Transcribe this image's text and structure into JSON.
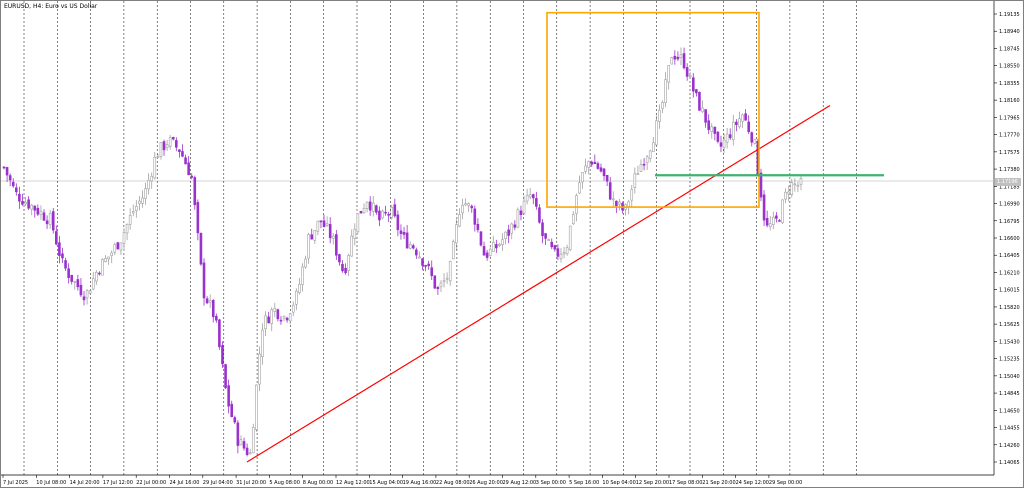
{
  "window": {
    "title": "EURUSD, H4:  Euro vs US Dollar",
    "current_price_label": "1.17196"
  },
  "price_axis": {
    "labels": [
      "1.19135",
      "1.18940",
      "1.18745",
      "1.18550",
      "1.18355",
      "1.18160",
      "1.17965",
      "1.17770",
      "1.17575",
      "1.17380",
      "1.17185",
      "1.16990",
      "1.16795",
      "1.16600",
      "1.16405",
      "1.16210",
      "1.16015",
      "1.15820",
      "1.15625",
      "1.15430",
      "1.15235",
      "1.15040",
      "1.14845",
      "1.14650",
      "1.14455",
      "1.14260",
      "1.14065"
    ]
  },
  "time_axis": {
    "labels": [
      "7 Jul 2025",
      "10 Jul 08:00",
      "14 Jul 20:00",
      "17 Jul 12:00",
      "22 Jul 00:00",
      "24 Jul 16:00",
      "29 Jul 04:00",
      "31 Jul 20:00",
      "5 Aug 08:00",
      "8 Aug 00:00",
      "12 Aug 12:00",
      "15 Aug 04:00",
      "19 Aug 16:00",
      "22 Aug 08:00",
      "26 Aug 20:00",
      "29 Aug 12:00",
      "3 Sep 00:00",
      "5 Sep 16:00",
      "10 Sep 04:00",
      "12 Sep 20:00",
      "17 Sep 08:00",
      "21 Sep 20:00",
      "24 Sep 12:00",
      "29 Sep 00:00"
    ]
  },
  "colors": {
    "bull_candle": "#a0a0a0",
    "bear_candle": "#9932cc",
    "trendline": "#ff0000",
    "rectangle": "#ffa500",
    "horizontal_level": "#3cb371",
    "grid": "#000000",
    "current_price_line": "#c0c0c0"
  },
  "chart_data": {
    "type": "candlestick",
    "symbol": "EURUSD",
    "timeframe": "H4",
    "ylim": [
      1.14065,
      1.19135
    ],
    "close_path": [
      [
        "7 Jul 2025",
        1.174
      ],
      [
        "8 Jul",
        1.171
      ],
      [
        "9 Jul",
        1.17
      ],
      [
        "10 Jul 08:00",
        1.169
      ],
      [
        "11 Jul",
        1.168
      ],
      [
        "14 Jul",
        1.163
      ],
      [
        "14 Jul 20:00",
        1.161
      ],
      [
        "15 Jul",
        1.1595
      ],
      [
        "16 Jul",
        1.1625
      ],
      [
        "17 Jul 12:00",
        1.164
      ],
      [
        "18 Jul",
        1.166
      ],
      [
        "21 Jul",
        1.169
      ],
      [
        "22 Jul 00:00",
        1.171
      ],
      [
        "23 Jul",
        1.1755
      ],
      [
        "24 Jul",
        1.177
      ],
      [
        "24 Jul 16:00",
        1.176
      ],
      [
        "25 Jul",
        1.173
      ],
      [
        "28 Jul",
        1.16
      ],
      [
        "29 Jul 04:00",
        1.157
      ],
      [
        "29 Jul",
        1.148
      ],
      [
        "30 Jul",
        1.143
      ],
      [
        "31 Jul",
        1.1415
      ],
      [
        "31 Jul 20:00",
        1.156
      ],
      [
        "1 Aug",
        1.158
      ],
      [
        "4 Aug",
        1.157
      ],
      [
        "5 Aug 08:00",
        1.1595
      ],
      [
        "6 Aug",
        1.166
      ],
      [
        "7 Aug",
        1.168
      ],
      [
        "8 Aug 00:00",
        1.166
      ],
      [
        "11 Aug",
        1.162
      ],
      [
        "12 Aug 12:00",
        1.168
      ],
      [
        "13 Aug",
        1.1705
      ],
      [
        "14 Aug",
        1.168
      ],
      [
        "15 Aug 04:00",
        1.169
      ],
      [
        "18 Aug",
        1.166
      ],
      [
        "19 Aug 16:00",
        1.165
      ],
      [
        "20 Aug",
        1.163
      ],
      [
        "21 Aug",
        1.16
      ],
      [
        "22 Aug 08:00",
        1.162
      ],
      [
        "22 Aug",
        1.1705
      ],
      [
        "25 Aug",
        1.169
      ],
      [
        "26 Aug 20:00",
        1.164
      ],
      [
        "27 Aug",
        1.165
      ],
      [
        "28 Aug",
        1.1665
      ],
      [
        "29 Aug 12:00",
        1.169
      ],
      [
        "1 Sep",
        1.171
      ],
      [
        "2 Sep",
        1.166
      ],
      [
        "3 Sep 00:00",
        1.164
      ],
      [
        "4 Sep",
        1.165
      ],
      [
        "5 Sep 16:00",
        1.172
      ],
      [
        "8 Sep",
        1.175
      ],
      [
        "9 Sep",
        1.1735
      ],
      [
        "10 Sep 04:00",
        1.17
      ],
      [
        "11 Sep",
        1.169
      ],
      [
        "12 Sep 20:00",
        1.1735
      ],
      [
        "15 Sep",
        1.176
      ],
      [
        "16 Sep",
        1.18
      ],
      [
        "17 Sep 08:00",
        1.187
      ],
      [
        "17 Sep",
        1.186
      ],
      [
        "18 Sep",
        1.182
      ],
      [
        "19 Sep",
        1.179
      ],
      [
        "21 Sep 20:00",
        1.176
      ],
      [
        "22 Sep",
        1.178
      ],
      [
        "23 Sep",
        1.18
      ],
      [
        "24 Sep 12:00",
        1.177
      ],
      [
        "25 Sep",
        1.167
      ],
      [
        "26 Sep",
        1.168
      ],
      [
        "29 Sep 00:00",
        1.172
      ],
      [
        "29 Sep",
        1.172
      ]
    ],
    "objects": [
      {
        "type": "trendline",
        "from": [
          "31 Jul",
          1.14065
        ],
        "to": [
          "29 Sep",
          1.181
        ]
      },
      {
        "type": "rectangle",
        "time": [
          "3 Sep",
          "24 Sep"
        ],
        "price": [
          1.1695,
          1.1915
        ]
      },
      {
        "type": "horizontal_segment",
        "time": [
          "12 Sep",
          "1 Oct"
        ],
        "price": 1.1731
      }
    ],
    "grid": "vertical-dashed"
  }
}
